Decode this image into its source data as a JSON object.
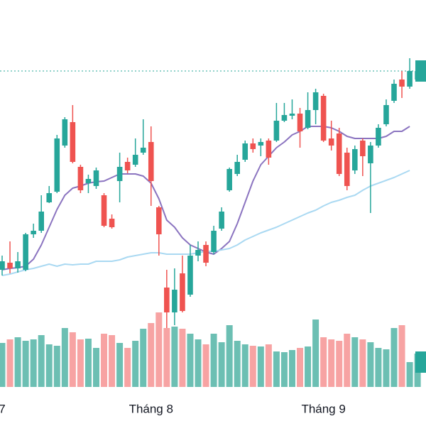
{
  "chart_data": {
    "type": "candlestick",
    "categories": [
      "7",
      null,
      null,
      null,
      null,
      null,
      null,
      null,
      null,
      null,
      null,
      null,
      null,
      null,
      null,
      null,
      null,
      null,
      null,
      "Tháng 8",
      null,
      null,
      null,
      null,
      null,
      null,
      null,
      null,
      null,
      null,
      null,
      null,
      null,
      null,
      null,
      null,
      null,
      null,
      null,
      null,
      null,
      "Tháng 9",
      null,
      null,
      null,
      null,
      null,
      null,
      null,
      null,
      null,
      null,
      null,
      null
    ],
    "open": [
      22,
      23,
      22.2,
      22,
      27,
      27.5,
      31.5,
      33,
      39.5,
      42.8,
      36.5,
      34.2,
      33.8,
      32.5,
      29.2,
      34.5,
      37.2,
      36.8,
      38.5,
      40,
      30.8,
      19.5,
      16,
      21.5,
      18.5,
      24,
      25.5,
      24.5,
      27.8,
      33.2,
      35.5,
      37.5,
      39.8,
      39.5,
      40.2,
      40.2,
      43,
      43.7,
      44,
      42,
      44.5,
      46.5,
      40.5,
      41.2,
      38.5,
      36,
      40.2,
      37,
      39.5,
      42.5,
      45.8,
      48.8,
      47.8,
      48.8
    ],
    "high": [
      24,
      26,
      24.5,
      27.2,
      28.5,
      32.5,
      33.8,
      41,
      43.5,
      45.2,
      36.8,
      35.4,
      36.4,
      32.8,
      29.8,
      38.5,
      37.8,
      40.5,
      43.2,
      42.2,
      31,
      22,
      22.2,
      24,
      25.5,
      26,
      26,
      28.2,
      30.8,
      36.4,
      38.2,
      40.2,
      40.5,
      40.5,
      40.5,
      45.5,
      45.5,
      46,
      44.8,
      47,
      47.5,
      46.8,
      43,
      42,
      39.2,
      39.5,
      40.5,
      40,
      42.5,
      46,
      48.8,
      50,
      51.8,
      51.5
    ],
    "low": [
      21.2,
      21.5,
      21.6,
      21.8,
      26.5,
      27.2,
      31.4,
      32.8,
      39.2,
      37,
      32.8,
      32.8,
      33.4,
      28,
      27.8,
      31.5,
      35.6,
      36.5,
      38.2,
      31,
      24,
      13.8,
      14.2,
      16,
      18.2,
      23.2,
      22.5,
      24.2,
      27.5,
      33,
      35.2,
      37.2,
      38.5,
      38,
      36.8,
      40,
      42.8,
      43.2,
      39.2,
      41.8,
      42.5,
      40,
      38.8,
      35.2,
      33.2,
      35.5,
      35.2,
      30,
      39.2,
      42.2,
      45.5,
      46.2,
      47.5,
      48.8
    ],
    "close": [
      23.2,
      22.2,
      23.2,
      27,
      27.5,
      30.2,
      32.8,
      40.5,
      43.2,
      37.2,
      33.2,
      34.8,
      36,
      28.2,
      28,
      36.5,
      36,
      38.2,
      39.2,
      34.5,
      27,
      16,
      19.2,
      16.2,
      24,
      24.8,
      23,
      27.5,
      30.2,
      36.2,
      37.2,
      39.8,
      39,
      40,
      37.8,
      43,
      43.8,
      44,
      41.5,
      44.5,
      47,
      40.2,
      39.5,
      35.5,
      33.8,
      39,
      38,
      39.5,
      42,
      45.2,
      48.2,
      47.8,
      50,
      50
    ],
    "volume": [
      62,
      67,
      70,
      65,
      67,
      73,
      60,
      58,
      83,
      77,
      67,
      68,
      55,
      75,
      73,
      62,
      55,
      65,
      82,
      90,
      105,
      83,
      85,
      82,
      75,
      67,
      60,
      75,
      63,
      87,
      65,
      60,
      58,
      57,
      60,
      50,
      49,
      52,
      55,
      57,
      95,
      70,
      67,
      65,
      75,
      70,
      67,
      63,
      55,
      53,
      83,
      87,
      35,
      47
    ],
    "moving_averages": [
      {
        "color": "#8b74c0",
        "values": [
          22,
          22.2,
          22.3,
          22.5,
          23.5,
          25.5,
          28,
          30.5,
          32.5,
          33.5,
          33.8,
          34.2,
          34.4,
          34.5,
          35,
          35.5,
          35.5,
          35.5,
          35.2,
          34.2,
          32,
          29,
          28,
          26.5,
          25.5,
          25,
          24.5,
          24.2,
          25,
          26,
          28.5,
          31.5,
          34.5,
          36.8,
          38,
          39.2,
          40,
          41,
          41.5,
          42.2,
          42.2,
          42.2,
          42,
          41.5,
          40.8,
          40.5,
          40.5,
          40.5,
          40.5,
          40.8,
          41.5,
          41.5,
          42.2,
          null
        ]
      },
      {
        "color": "#aad9f2",
        "values": [
          21.2,
          21.4,
          21.7,
          22,
          22.2,
          22.5,
          22.8,
          22.5,
          22.8,
          22.7,
          22.8,
          22.8,
          23.2,
          23.2,
          23.2,
          23.4,
          23.8,
          24,
          24.2,
          24.4,
          24.4,
          24.2,
          24.2,
          24.2,
          24.2,
          24.4,
          24.6,
          24.6,
          24.8,
          25,
          25.5,
          26.2,
          26.7,
          27.2,
          27.6,
          28,
          28.5,
          29,
          29.5,
          30,
          30.4,
          31,
          31.5,
          31.8,
          32.2,
          32.5,
          33.2,
          33.8,
          34.2,
          34.6,
          35,
          35.5,
          36,
          null
        ]
      }
    ],
    "up_color": "#26a69a",
    "down_color": "#ef5350",
    "volume_up_color": "#6cbfb3",
    "volume_down_color": "#f7a3a3",
    "ylim": [
      0,
      60
    ],
    "volume_lim": [
      0,
      105
    ]
  }
}
